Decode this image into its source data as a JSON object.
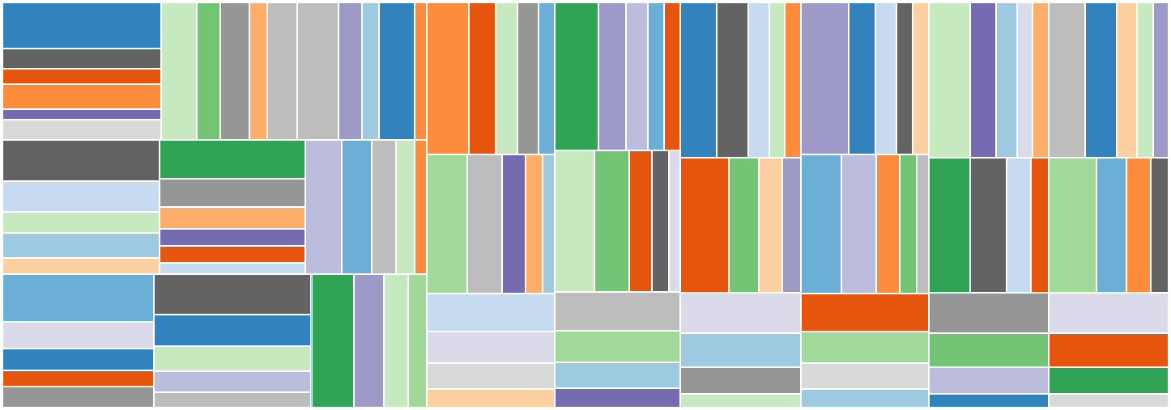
{
  "chart_data": {
    "type": "treemap",
    "title": "",
    "palette": [
      "#3182bd",
      "#6baed6",
      "#9ecae1",
      "#c6dbef",
      "#e6550d",
      "#fd8d3c",
      "#fdae6b",
      "#fdd0a2",
      "#31a354",
      "#74c476",
      "#a1d99b",
      "#c7e9c0",
      "#756bb1",
      "#9e9ac8",
      "#bcbddc",
      "#dadaeb",
      "#636363",
      "#969696",
      "#bdbdbd",
      "#d9d9d9"
    ],
    "root": {
      "children": [
        {
          "c": 1,
          "children": [
            {
              "c": 5,
              "children": [
                {
                  "c": 8,
                  "children": [
                    {
                      "v": 9,
                      "c": 0
                    },
                    {
                      "v": 4,
                      "c": 16
                    },
                    {
                      "v": 3,
                      "c": 4
                    },
                    {
                      "v": 5,
                      "c": 5
                    },
                    {
                      "v": 2,
                      "c": 12
                    },
                    {
                      "v": 4,
                      "c": 19
                    }
                  ]
                },
                {
                  "c": 3,
                  "children": [
                    {
                      "v": 6,
                      "c": 11
                    },
                    {
                      "v": 4,
                      "c": 9
                    },
                    {
                      "v": 5,
                      "c": 17
                    },
                    {
                      "v": 3,
                      "c": 6
                    },
                    {
                      "v": 5,
                      "c": 18
                    }
                  ]
                },
                {
                  "c": 14,
                  "children": [
                    {
                      "v": 7,
                      "c": 18
                    },
                    {
                      "v": 4,
                      "c": 13
                    },
                    {
                      "v": 3,
                      "c": 2
                    },
                    {
                      "v": 6,
                      "c": 0
                    },
                    {
                      "v": 2,
                      "c": 5
                    }
                  ]
                }
              ]
            },
            {
              "c": 10,
              "children": [
                {
                  "c": 0,
                  "children": [
                    {
                      "v": 8,
                      "c": 16
                    },
                    {
                      "v": 6,
                      "c": 3
                    },
                    {
                      "v": 4,
                      "c": 11
                    },
                    {
                      "v": 5,
                      "c": 2
                    },
                    {
                      "v": 3,
                      "c": 7
                    }
                  ]
                },
                {
                  "c": 6,
                  "children": [
                    {
                      "v": 7,
                      "c": 8
                    },
                    {
                      "v": 5,
                      "c": 17
                    },
                    {
                      "v": 4,
                      "c": 6
                    },
                    {
                      "v": 3,
                      "c": 12
                    },
                    {
                      "v": 3,
                      "c": 4
                    },
                    {
                      "v": 2,
                      "c": 3
                    }
                  ]
                },
                {
                  "c": 15,
                  "children": [
                    {
                      "v": 6,
                      "c": 14
                    },
                    {
                      "v": 5,
                      "c": 1
                    },
                    {
                      "v": 4,
                      "c": 18
                    },
                    {
                      "v": 3,
                      "c": 11
                    },
                    {
                      "v": 2,
                      "c": 5
                    }
                  ]
                }
              ]
            },
            {
              "c": 2,
              "children": [
                {
                  "c": 18,
                  "children": [
                    {
                      "v": 9,
                      "c": 1
                    },
                    {
                      "v": 5,
                      "c": 15
                    },
                    {
                      "v": 4,
                      "c": 0
                    },
                    {
                      "v": 3,
                      "c": 4
                    },
                    {
                      "v": 4,
                      "c": 17
                    }
                  ]
                },
                {
                  "c": 11,
                  "children": [
                    {
                      "v": 8,
                      "c": 16
                    },
                    {
                      "v": 6,
                      "c": 0
                    },
                    {
                      "v": 5,
                      "c": 11
                    },
                    {
                      "v": 4,
                      "c": 14
                    },
                    {
                      "v": 3,
                      "c": 18
                    }
                  ]
                },
                {
                  "c": 7,
                  "children": [
                    {
                      "v": 7,
                      "c": 8
                    },
                    {
                      "v": 5,
                      "c": 13
                    },
                    {
                      "v": 4,
                      "c": 11
                    },
                    {
                      "v": 3,
                      "c": 10
                    }
                  ]
                }
              ]
            }
          ]
        },
        {
          "c": 13,
          "children": [
            {
              "c": 6,
              "children": [
                {
                  "c": 4,
                  "children": [
                    {
                      "v": 8,
                      "c": 5
                    },
                    {
                      "v": 5,
                      "c": 4
                    },
                    {
                      "v": 4,
                      "c": 11
                    },
                    {
                      "v": 4,
                      "c": 17
                    },
                    {
                      "v": 3,
                      "c": 1
                    }
                  ]
                },
                {
                  "c": 9,
                  "children": [
                    {
                      "v": 7,
                      "c": 10
                    },
                    {
                      "v": 6,
                      "c": 18
                    },
                    {
                      "v": 4,
                      "c": 12
                    },
                    {
                      "v": 3,
                      "c": 6
                    },
                    {
                      "v": 2,
                      "c": 2
                    }
                  ]
                },
                {
                  "c": 17,
                  "children": [
                    {
                      "v": 6,
                      "c": 3
                    },
                    {
                      "v": 5,
                      "c": 15
                    },
                    {
                      "v": 4,
                      "c": 19
                    },
                    {
                      "v": 3,
                      "c": 7
                    }
                  ]
                }
              ]
            },
            {
              "c": 8,
              "children": [
                {
                  "c": 12,
                  "children": [
                    {
                      "v": 8,
                      "c": 8
                    },
                    {
                      "v": 5,
                      "c": 13
                    },
                    {
                      "v": 4,
                      "c": 14
                    },
                    {
                      "v": 3,
                      "c": 1
                    },
                    {
                      "v": 3,
                      "c": 4
                    }
                  ]
                },
                {
                  "c": 1,
                  "children": [
                    {
                      "v": 7,
                      "c": 11
                    },
                    {
                      "v": 6,
                      "c": 9
                    },
                    {
                      "v": 4,
                      "c": 4
                    },
                    {
                      "v": 3,
                      "c": 16
                    },
                    {
                      "v": 2,
                      "c": 15
                    }
                  ]
                },
                {
                  "c": 19,
                  "children": [
                    {
                      "v": 6,
                      "c": 18
                    },
                    {
                      "v": 5,
                      "c": 10
                    },
                    {
                      "v": 4,
                      "c": 2
                    },
                    {
                      "v": 3,
                      "c": 12
                    }
                  ]
                }
              ]
            },
            {
              "c": 3,
              "children": [
                {
                  "c": 5,
                  "children": [
                    {
                      "v": 7,
                      "c": 0
                    },
                    {
                      "v": 6,
                      "c": 16
                    },
                    {
                      "v": 4,
                      "c": 3
                    },
                    {
                      "v": 3,
                      "c": 11
                    },
                    {
                      "v": 3,
                      "c": 5
                    }
                  ]
                },
                {
                  "c": 14,
                  "children": [
                    {
                      "v": 8,
                      "c": 4
                    },
                    {
                      "v": 5,
                      "c": 9
                    },
                    {
                      "v": 4,
                      "c": 7
                    },
                    {
                      "v": 3,
                      "c": 13
                    }
                  ]
                },
                {
                  "c": 10,
                  "children": [
                    {
                      "v": 6,
                      "c": 15
                    },
                    {
                      "v": 5,
                      "c": 2
                    },
                    {
                      "v": 4,
                      "c": 17
                    },
                    {
                      "v": 2,
                      "c": 11
                    }
                  ]
                }
              ]
            }
          ]
        },
        {
          "c": 16,
          "children": [
            {
              "c": 7,
              "children": [
                {
                  "c": 0,
                  "children": [
                    {
                      "v": 9,
                      "c": 13
                    },
                    {
                      "v": 5,
                      "c": 0
                    },
                    {
                      "v": 4,
                      "c": 3
                    },
                    {
                      "v": 3,
                      "c": 16
                    },
                    {
                      "v": 3,
                      "c": 7
                    }
                  ]
                },
                {
                  "c": 11,
                  "children": [
                    {
                      "v": 7,
                      "c": 1
                    },
                    {
                      "v": 6,
                      "c": 14
                    },
                    {
                      "v": 4,
                      "c": 5
                    },
                    {
                      "v": 3,
                      "c": 9
                    },
                    {
                      "v": 2,
                      "c": 18
                    }
                  ]
                },
                {
                  "c": 4,
                  "children": [
                    {
                      "v": 6,
                      "c": 4
                    },
                    {
                      "v": 5,
                      "c": 10
                    },
                    {
                      "v": 4,
                      "c": 19
                    },
                    {
                      "v": 3,
                      "c": 2
                    }
                  ]
                }
              ]
            },
            {
              "c": 12,
              "children": [
                {
                  "c": 15,
                  "children": [
                    {
                      "v": 8,
                      "c": 11
                    },
                    {
                      "v": 5,
                      "c": 12
                    },
                    {
                      "v": 4,
                      "c": 2
                    },
                    {
                      "v": 3,
                      "c": 15
                    },
                    {
                      "v": 3,
                      "c": 6
                    }
                  ]
                },
                {
                  "c": 9,
                  "children": [
                    {
                      "v": 7,
                      "c": 8
                    },
                    {
                      "v": 6,
                      "c": 16
                    },
                    {
                      "v": 4,
                      "c": 3
                    },
                    {
                      "v": 3,
                      "c": 4
                    }
                  ]
                },
                {
                  "c": 2,
                  "children": [
                    {
                      "v": 6,
                      "c": 17
                    },
                    {
                      "v": 5,
                      "c": 9
                    },
                    {
                      "v": 4,
                      "c": 14
                    },
                    {
                      "v": 2,
                      "c": 0
                    }
                  ]
                }
              ]
            },
            {
              "c": 18,
              "children": [
                {
                  "c": 6,
                  "children": [
                    {
                      "v": 7,
                      "c": 18
                    },
                    {
                      "v": 6,
                      "c": 0
                    },
                    {
                      "v": 4,
                      "c": 7
                    },
                    {
                      "v": 3,
                      "c": 11
                    },
                    {
                      "v": 3,
                      "c": 13
                    }
                  ]
                },
                {
                  "c": 1,
                  "children": [
                    {
                      "v": 8,
                      "c": 10
                    },
                    {
                      "v": 5,
                      "c": 1
                    },
                    {
                      "v": 4,
                      "c": 5
                    },
                    {
                      "v": 3,
                      "c": 16
                    }
                  ]
                },
                {
                  "c": 13,
                  "children": [
                    {
                      "v": 6,
                      "c": 15
                    },
                    {
                      "v": 5,
                      "c": 4
                    },
                    {
                      "v": 4,
                      "c": 8
                    },
                    {
                      "v": 2,
                      "c": 19
                    }
                  ]
                }
              ]
            }
          ]
        }
      ]
    }
  }
}
